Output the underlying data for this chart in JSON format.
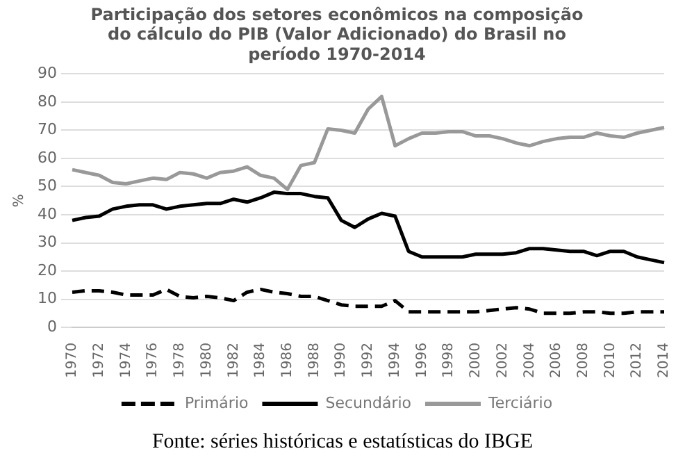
{
  "chart_data": {
    "type": "line",
    "title": "Participação dos setores econômicos na composição do cálculo do PIB (Valor Adicionado) do Brasil no período 1970-2014",
    "ylabel": "%",
    "categories": [
      "1970",
      null,
      "1972",
      null,
      "1974",
      null,
      "1976",
      null,
      "1978",
      null,
      "1980",
      null,
      "1982",
      null,
      "1984",
      null,
      "1986",
      null,
      "1988",
      null,
      "1990",
      null,
      "1992",
      null,
      "1994",
      null,
      "1996",
      null,
      "1998",
      null,
      "2000",
      null,
      "2002",
      null,
      "2004",
      null,
      "2006",
      null,
      "2008",
      null,
      "2010",
      null,
      "2012",
      null,
      "2014"
    ],
    "series": [
      {
        "name": "Primário",
        "color": "#000000",
        "line_style": "dashed",
        "values": [
          12.5,
          13,
          13,
          12.5,
          11.5,
          11.5,
          11.5,
          13.5,
          11,
          10.5,
          11,
          10.5,
          9.5,
          12.5,
          13.5,
          12.5,
          12,
          11,
          11,
          9.5,
          8,
          7.5,
          7.5,
          7.5,
          9.5,
          5.5,
          5.5,
          5.5,
          5.5,
          5.5,
          5.5,
          6,
          6.5,
          7,
          6.5,
          5,
          5,
          5,
          5.5,
          5.5,
          5,
          5,
          5.5,
          5.5,
          5.5
        ]
      },
      {
        "name": "Secundário",
        "color": "#000000",
        "line_style": "solid",
        "values": [
          38,
          39,
          39.5,
          42,
          43,
          43.5,
          43.5,
          42,
          43,
          43.5,
          44,
          44,
          45.5,
          44.5,
          46,
          48,
          47.5,
          47.5,
          46.5,
          46,
          38,
          35.5,
          38.5,
          40.5,
          39.5,
          27,
          25,
          25,
          25,
          25,
          26,
          26,
          26,
          26.5,
          28,
          28,
          27.5,
          27,
          27,
          25.5,
          27,
          27,
          25,
          24,
          23
        ]
      },
      {
        "name": "Terciário",
        "color": "#999999",
        "line_style": "solid",
        "values": [
          56,
          55,
          54,
          51.5,
          51,
          52,
          53,
          52.5,
          55,
          54.5,
          53,
          55,
          55.5,
          57,
          54,
          53,
          49,
          57.5,
          58.5,
          70.5,
          70,
          69,
          77.5,
          82,
          64.5,
          67,
          69,
          69,
          69.5,
          69.5,
          68,
          68,
          67,
          65.5,
          64.5,
          66,
          67,
          67.5,
          67.5,
          69,
          68,
          67.5,
          69,
          70,
          71
        ]
      }
    ],
    "ylim": [
      0,
      90
    ],
    "yticks": [
      0,
      10,
      20,
      30,
      40,
      50,
      60,
      70,
      80,
      90
    ],
    "grid": "y",
    "legend": "bottom",
    "marker": "none",
    "annotations": [
      "Fonte: séries históricas e estatísticas do IBGE"
    ]
  }
}
